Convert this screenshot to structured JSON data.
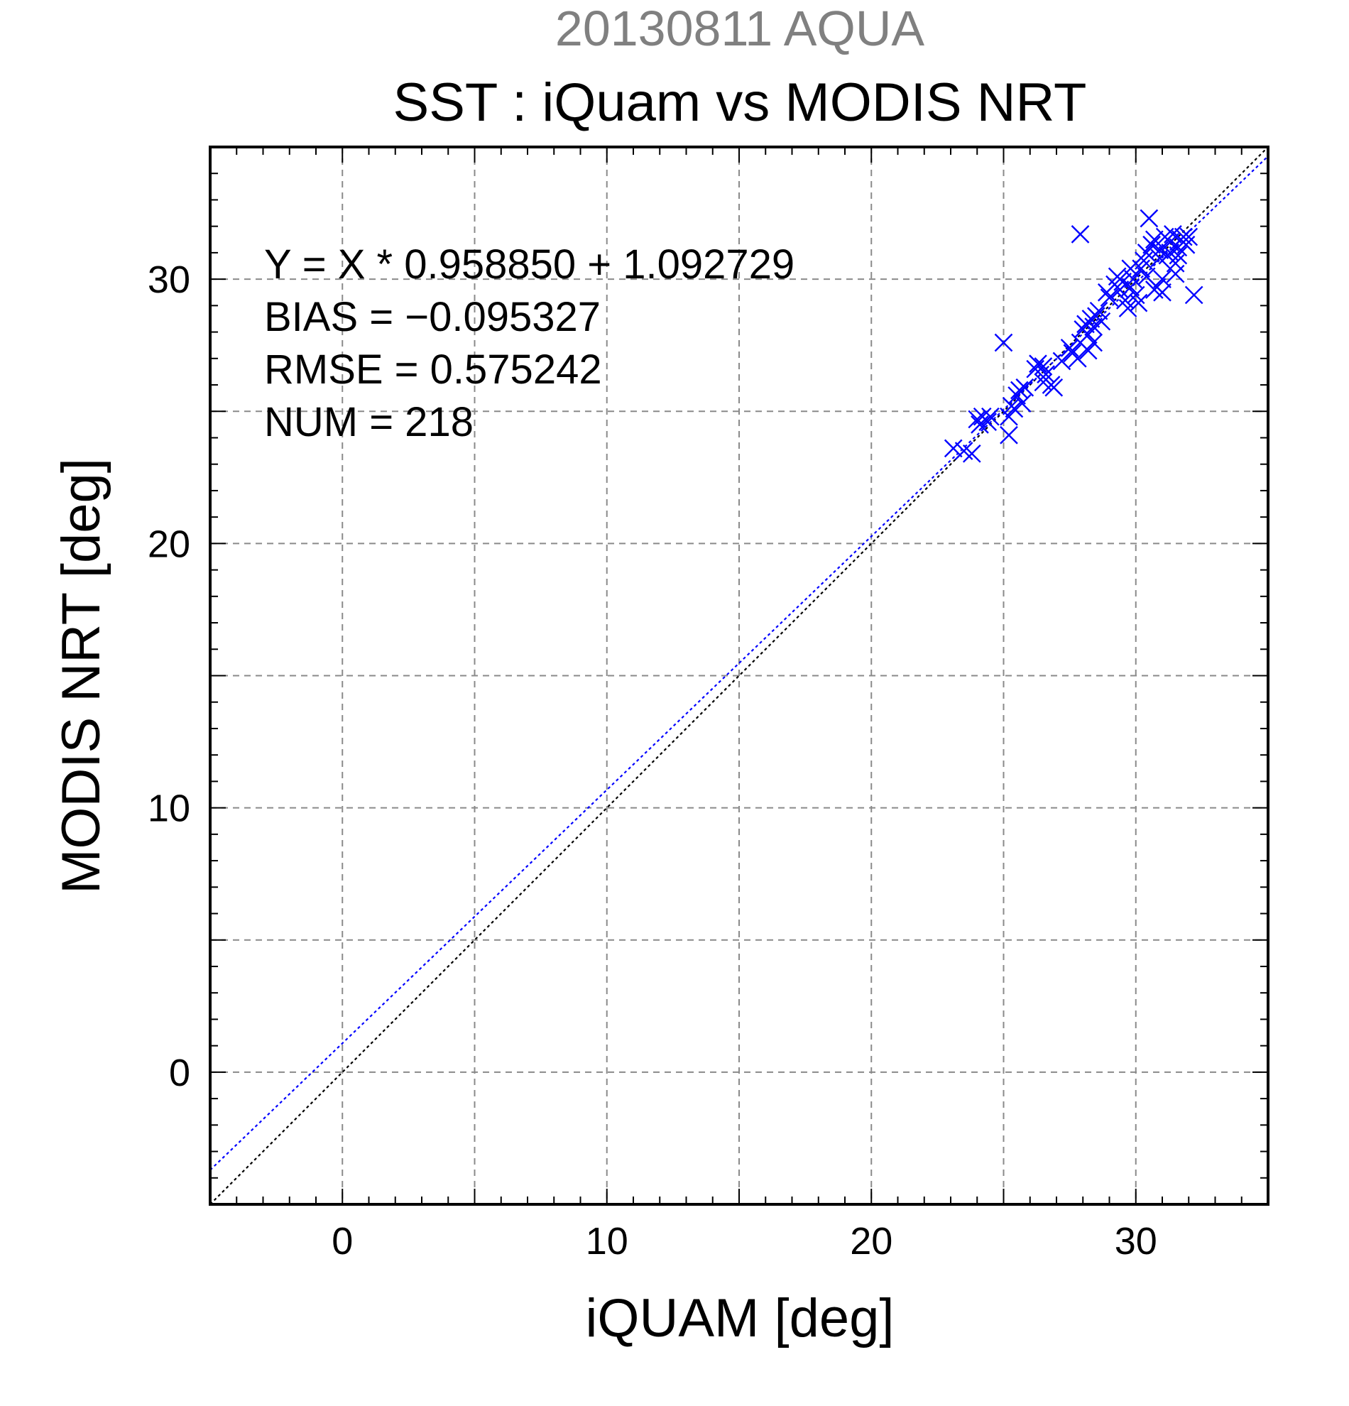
{
  "chart_data": {
    "type": "scatter",
    "suptitle": "20130811 AQUA",
    "title": "SST : iQuam vs MODIS NRT",
    "xlabel": "iQUAM [deg]",
    "ylabel": "MODIS NRT [deg]",
    "xlim": [
      -5,
      35
    ],
    "ylim": [
      -5,
      35
    ],
    "major_ticks": [
      0,
      10,
      20,
      30
    ],
    "grid": true,
    "annotations": [
      "Y = X * 0.958850 + 1.092729",
      "BIAS = −0.095327",
      "RMSE = 0.575242",
      "NUM = 218"
    ],
    "fit_line": {
      "slope": 0.95885,
      "intercept": 1.092729,
      "color": "#0000ff",
      "style": "dotted"
    },
    "identity_line": {
      "slope": 1,
      "intercept": 0,
      "color": "#000000",
      "style": "dotted"
    },
    "series": [
      {
        "marker": "x",
        "color": "#0000ff",
        "points": [
          [
            23.1,
            23.6
          ],
          [
            23.5,
            23.5
          ],
          [
            23.8,
            23.4
          ],
          [
            24.0,
            24.7
          ],
          [
            24.2,
            24.8
          ],
          [
            24.4,
            24.6
          ],
          [
            24.5,
            24.8
          ],
          [
            24.1,
            24.5
          ],
          [
            25.0,
            27.6
          ],
          [
            25.2,
            24.1
          ],
          [
            25.2,
            24.8
          ],
          [
            25.3,
            25.2
          ],
          [
            25.5,
            25.6
          ],
          [
            25.6,
            25.8
          ],
          [
            25.4,
            25.1
          ],
          [
            25.7,
            25.3
          ],
          [
            25.8,
            25.9
          ],
          [
            26.2,
            26.6
          ],
          [
            26.3,
            26.8
          ],
          [
            26.5,
            26.7
          ],
          [
            26.6,
            26.4
          ],
          [
            26.8,
            26.0
          ],
          [
            26.9,
            25.9
          ],
          [
            26.5,
            26.1
          ],
          [
            27.2,
            26.9
          ],
          [
            27.5,
            27.4
          ],
          [
            27.6,
            27.2
          ],
          [
            27.8,
            27.0
          ],
          [
            27.9,
            27.6
          ],
          [
            28.0,
            28.1
          ],
          [
            28.1,
            28.3
          ],
          [
            28.2,
            27.9
          ],
          [
            28.3,
            28.5
          ],
          [
            28.4,
            28.2
          ],
          [
            28.5,
            28.6
          ],
          [
            28.6,
            28.8
          ],
          [
            28.7,
            28.4
          ],
          [
            28.2,
            27.3
          ],
          [
            28.4,
            27.6
          ],
          [
            27.9,
            31.7
          ],
          [
            28.9,
            29.5
          ],
          [
            29.0,
            29.3
          ],
          [
            29.2,
            29.8
          ],
          [
            29.3,
            30.1
          ],
          [
            29.4,
            29.6
          ],
          [
            29.5,
            29.9
          ],
          [
            29.6,
            29.2
          ],
          [
            29.7,
            28.9
          ],
          [
            29.8,
            29.7
          ],
          [
            29.9,
            30.0
          ],
          [
            30.0,
            29.4
          ],
          [
            30.1,
            29.1
          ],
          [
            30.2,
            30.4
          ],
          [
            30.3,
            30.7
          ],
          [
            30.4,
            31.0
          ],
          [
            30.5,
            32.3
          ],
          [
            30.6,
            31.3
          ],
          [
            30.7,
            31.5
          ],
          [
            30.8,
            29.7
          ],
          [
            30.9,
            31.1
          ],
          [
            31.0,
            29.5
          ],
          [
            31.1,
            31.6
          ],
          [
            31.2,
            30.9
          ],
          [
            31.3,
            31.4
          ],
          [
            31.4,
            31.7
          ],
          [
            31.5,
            30.6
          ],
          [
            31.6,
            31.2
          ],
          [
            31.7,
            31.5
          ],
          [
            31.8,
            31.6
          ],
          [
            31.9,
            31.3
          ],
          [
            32.0,
            31.6
          ],
          [
            32.2,
            29.4
          ],
          [
            31.5,
            30.2
          ],
          [
            31.0,
            30.0
          ],
          [
            30.7,
            29.6
          ],
          [
            30.4,
            30.1
          ],
          [
            29.8,
            30.4
          ],
          [
            30.9,
            30.8
          ],
          [
            31.3,
            31.0
          ],
          [
            31.6,
            30.9
          ]
        ]
      }
    ]
  }
}
